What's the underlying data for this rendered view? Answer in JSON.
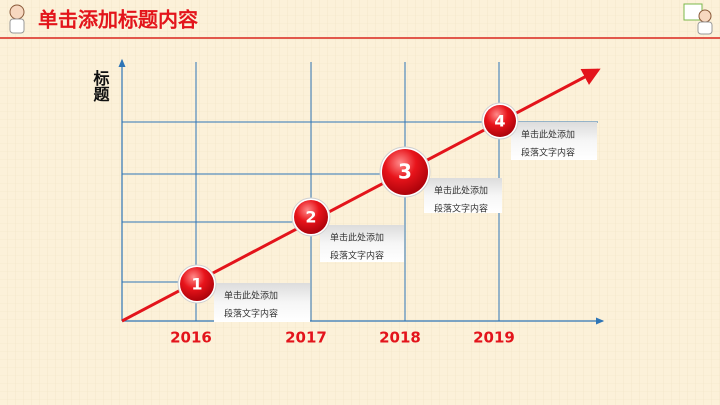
{
  "header": {
    "title": "单击添加标题内容"
  },
  "axis_label": "标题",
  "milestones": [
    {
      "number": "1",
      "year": "2016",
      "lines": [
        "单击此处添加",
        "段落文字内容"
      ]
    },
    {
      "number": "2",
      "year": "2017",
      "lines": [
        "单击此处添加",
        "段落文字内容"
      ]
    },
    {
      "number": "3",
      "year": "2018",
      "lines": [
        "单击此处添加",
        "段落文字内容"
      ]
    },
    {
      "number": "4",
      "year": "2019",
      "lines": [
        "单击此处添加",
        "段落文字内容"
      ]
    }
  ]
}
